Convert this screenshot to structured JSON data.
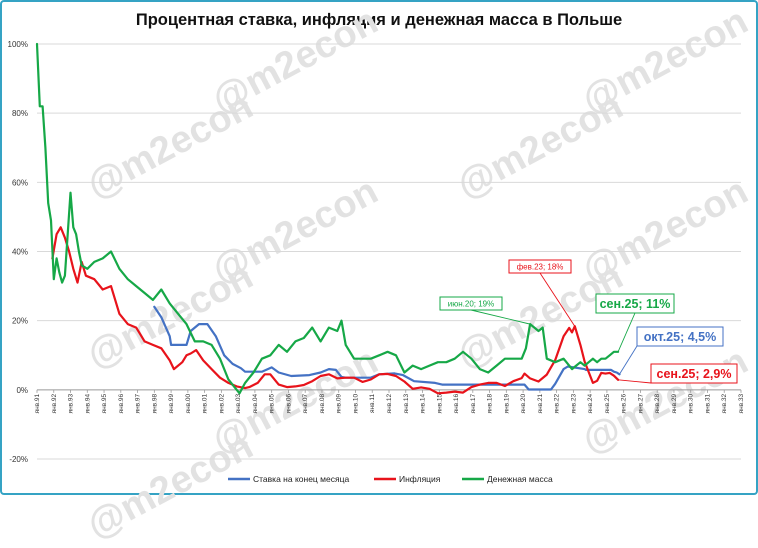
{
  "title": "Процентная ставка, инфляция и денежная масса в Польше",
  "watermark": "@m2econ",
  "colors": {
    "rate": "#4472c4",
    "inflation": "#e8131b",
    "money": "#16a847",
    "frame": "#35a3c4"
  },
  "chart_data": {
    "type": "line",
    "ylim": [
      -20,
      100
    ],
    "yticks": [
      "-20%",
      "0%",
      "20%",
      "40%",
      "60%",
      "80%",
      "100%"
    ],
    "x_range": [
      "1991-01",
      "2033-01"
    ],
    "xtick_labels": [
      "янв.91",
      "янв.92",
      "янв.93",
      "янв.94",
      "янв.95",
      "янв.96",
      "янв.97",
      "янв.98",
      "янв.99",
      "янв.00",
      "янв.01",
      "янв.02",
      "янв.03",
      "янв.04",
      "янв.05",
      "янв.06",
      "янв.07",
      "янв.08",
      "янв.09",
      "янв.10",
      "янв.11",
      "янв.12",
      "янв.13",
      "янв.14",
      "янв.15",
      "янв.16",
      "янв.17",
      "янв.18",
      "янв.19",
      "янв.20",
      "янв.21",
      "янв.22",
      "янв.23",
      "янв.24",
      "янв.25",
      "янв.26",
      "янв.27",
      "янв.28",
      "янв.29",
      "янв.30",
      "янв.31",
      "янв.32",
      "янв.33"
    ],
    "grid": true,
    "legend_position": "bottom",
    "series": [
      {
        "name": "Ставка на конец месяца",
        "color": "#4472c4",
        "points": [
          [
            "1998-01",
            24
          ],
          [
            "1998-06",
            21
          ],
          [
            "1998-12",
            15.5
          ],
          [
            "1999-01",
            13
          ],
          [
            "1999-12",
            13
          ],
          [
            "2000-03",
            17
          ],
          [
            "2000-09",
            19
          ],
          [
            "2001-03",
            19
          ],
          [
            "2001-09",
            15.5
          ],
          [
            "2002-03",
            10
          ],
          [
            "2002-09",
            7.5
          ],
          [
            "2003-03",
            6.25
          ],
          [
            "2003-06",
            5.25
          ],
          [
            "2004-06",
            5.25
          ],
          [
            "2005-01",
            6.5
          ],
          [
            "2005-06",
            5
          ],
          [
            "2006-03",
            4
          ],
          [
            "2007-04",
            4.25
          ],
          [
            "2007-12",
            5
          ],
          [
            "2008-06",
            6
          ],
          [
            "2008-11",
            5.75
          ],
          [
            "2009-03",
            3.75
          ],
          [
            "2009-06",
            3.5
          ],
          [
            "2010-12",
            3.5
          ],
          [
            "2011-06",
            4.5
          ],
          [
            "2012-05",
            4.75
          ],
          [
            "2012-11",
            4.25
          ],
          [
            "2013-07",
            2.5
          ],
          [
            "2014-10",
            2
          ],
          [
            "2015-03",
            1.5
          ],
          [
            "2020-02",
            1.5
          ],
          [
            "2020-05",
            0.1
          ],
          [
            "2021-09",
            0.1
          ],
          [
            "2021-12",
            1.75
          ],
          [
            "2022-06",
            6
          ],
          [
            "2022-09",
            6.75
          ],
          [
            "2023-09",
            6
          ],
          [
            "2023-10",
            5.75
          ],
          [
            "2025-04",
            5.75
          ],
          [
            "2025-06",
            5.25
          ],
          [
            "2025-08",
            5
          ],
          [
            "2025-10",
            4.5
          ]
        ]
      },
      {
        "name": "Инфляция",
        "color": "#e8131b",
        "points": [
          [
            "1991-12",
            38
          ],
          [
            "1992-03",
            45
          ],
          [
            "1992-06",
            47
          ],
          [
            "1992-09",
            44
          ],
          [
            "1992-12",
            40
          ],
          [
            "1993-03",
            35
          ],
          [
            "1993-06",
            31
          ],
          [
            "1993-09",
            37
          ],
          [
            "1993-12",
            33
          ],
          [
            "1994-06",
            32
          ],
          [
            "1994-12",
            29
          ],
          [
            "1995-06",
            30
          ],
          [
            "1995-12",
            22
          ],
          [
            "1996-06",
            19
          ],
          [
            "1996-12",
            18
          ],
          [
            "1997-06",
            14
          ],
          [
            "1997-12",
            13
          ],
          [
            "1998-06",
            12
          ],
          [
            "1998-12",
            8.5
          ],
          [
            "1999-03",
            6
          ],
          [
            "1999-09",
            8
          ],
          [
            "1999-12",
            10
          ],
          [
            "2000-03",
            10.5
          ],
          [
            "2000-07",
            11.5
          ],
          [
            "2000-12",
            8.5
          ],
          [
            "2001-06",
            6
          ],
          [
            "2001-12",
            3.5
          ],
          [
            "2002-06",
            2
          ],
          [
            "2002-12",
            1
          ],
          [
            "2003-06",
            0.5
          ],
          [
            "2003-09",
            0.8
          ],
          [
            "2004-03",
            2
          ],
          [
            "2004-08",
            4.5
          ],
          [
            "2004-12",
            4.5
          ],
          [
            "2005-06",
            1.5
          ],
          [
            "2005-12",
            0.8
          ],
          [
            "2006-06",
            1
          ],
          [
            "2006-12",
            1.4
          ],
          [
            "2007-06",
            2.5
          ],
          [
            "2007-12",
            4
          ],
          [
            "2008-06",
            4.5
          ],
          [
            "2008-12",
            3.3
          ],
          [
            "2009-06",
            3.5
          ],
          [
            "2009-12",
            3.5
          ],
          [
            "2010-06",
            2.3
          ],
          [
            "2010-12",
            3
          ],
          [
            "2011-06",
            4.5
          ],
          [
            "2011-12",
            4.6
          ],
          [
            "2012-06",
            4
          ],
          [
            "2012-12",
            2.4
          ],
          [
            "2013-06",
            0.3
          ],
          [
            "2013-12",
            0.7
          ],
          [
            "2014-06",
            0.3
          ],
          [
            "2014-12",
            -1
          ],
          [
            "2015-06",
            -0.8
          ],
          [
            "2015-12",
            -0.5
          ],
          [
            "2016-06",
            -0.8
          ],
          [
            "2016-12",
            0.8
          ],
          [
            "2017-06",
            1.5
          ],
          [
            "2017-12",
            2
          ],
          [
            "2018-06",
            2
          ],
          [
            "2018-12",
            1.1
          ],
          [
            "2019-06",
            2.5
          ],
          [
            "2019-12",
            3.4
          ],
          [
            "2020-02",
            4.7
          ],
          [
            "2020-06",
            3.3
          ],
          [
            "2020-12",
            2.4
          ],
          [
            "2021-06",
            4.4
          ],
          [
            "2021-12",
            8.6
          ],
          [
            "2022-06",
            15.5
          ],
          [
            "2022-10",
            17.9
          ],
          [
            "2022-12",
            16.6
          ],
          [
            "2023-02",
            18.4
          ],
          [
            "2023-06",
            13
          ],
          [
            "2023-09",
            8.2
          ],
          [
            "2024-03",
            2
          ],
          [
            "2024-06",
            2.6
          ],
          [
            "2024-09",
            4.9
          ],
          [
            "2024-12",
            4.7
          ],
          [
            "2025-03",
            4.9
          ],
          [
            "2025-06",
            4.1
          ],
          [
            "2025-09",
            2.9
          ]
        ]
      },
      {
        "name": "Денежная масса",
        "color": "#16a847",
        "points": [
          [
            "1991-01",
            100
          ],
          [
            "1991-03",
            82
          ],
          [
            "1991-05",
            82
          ],
          [
            "1991-07",
            70
          ],
          [
            "1991-09",
            54
          ],
          [
            "1991-11",
            49
          ],
          [
            "1992-01",
            32
          ],
          [
            "1992-03",
            38
          ],
          [
            "1992-05",
            34
          ],
          [
            "1992-07",
            31
          ],
          [
            "1992-09",
            33
          ],
          [
            "1992-11",
            45
          ],
          [
            "1993-01",
            57
          ],
          [
            "1993-03",
            47
          ],
          [
            "1993-05",
            45
          ],
          [
            "1993-07",
            40
          ],
          [
            "1993-09",
            36
          ],
          [
            "1994-01",
            35
          ],
          [
            "1994-06",
            37
          ],
          [
            "1994-12",
            38
          ],
          [
            "1995-06",
            40
          ],
          [
            "1995-12",
            35
          ],
          [
            "1996-06",
            32
          ],
          [
            "1996-12",
            30
          ],
          [
            "1997-06",
            28
          ],
          [
            "1997-12",
            26
          ],
          [
            "1998-06",
            29
          ],
          [
            "1998-12",
            25
          ],
          [
            "1999-06",
            22
          ],
          [
            "1999-12",
            19
          ],
          [
            "2000-06",
            14
          ],
          [
            "2000-12",
            14
          ],
          [
            "2001-06",
            13
          ],
          [
            "2001-12",
            9
          ],
          [
            "2002-06",
            3
          ],
          [
            "2002-12",
            0
          ],
          [
            "2003-02",
            -1
          ],
          [
            "2003-06",
            2
          ],
          [
            "2003-12",
            5
          ],
          [
            "2004-06",
            9
          ],
          [
            "2004-12",
            10
          ],
          [
            "2005-06",
            13
          ],
          [
            "2005-12",
            11
          ],
          [
            "2006-06",
            14
          ],
          [
            "2006-12",
            15
          ],
          [
            "2007-06",
            18
          ],
          [
            "2007-12",
            14
          ],
          [
            "2008-06",
            18
          ],
          [
            "2008-12",
            17
          ],
          [
            "2009-03",
            20
          ],
          [
            "2009-06",
            13
          ],
          [
            "2009-12",
            9
          ],
          [
            "2010-06",
            9
          ],
          [
            "2010-12",
            9
          ],
          [
            "2011-06",
            10
          ],
          [
            "2011-12",
            11
          ],
          [
            "2012-06",
            10
          ],
          [
            "2012-12",
            5
          ],
          [
            "2013-06",
            7
          ],
          [
            "2013-12",
            6
          ],
          [
            "2014-06",
            7
          ],
          [
            "2014-12",
            8
          ],
          [
            "2015-06",
            8
          ],
          [
            "2015-12",
            9
          ],
          [
            "2016-06",
            11
          ],
          [
            "2016-12",
            9
          ],
          [
            "2017-06",
            6
          ],
          [
            "2017-12",
            5
          ],
          [
            "2018-06",
            7
          ],
          [
            "2018-12",
            9
          ],
          [
            "2019-06",
            9
          ],
          [
            "2019-12",
            9
          ],
          [
            "2020-03",
            12
          ],
          [
            "2020-06",
            19
          ],
          [
            "2020-12",
            17
          ],
          [
            "2021-03",
            18
          ],
          [
            "2021-06",
            9
          ],
          [
            "2021-12",
            8
          ],
          [
            "2022-06",
            9
          ],
          [
            "2022-12",
            6
          ],
          [
            "2023-03",
            7
          ],
          [
            "2023-06",
            8
          ],
          [
            "2023-09",
            7
          ],
          [
            "2023-12",
            8
          ],
          [
            "2024-03",
            9
          ],
          [
            "2024-06",
            8
          ],
          [
            "2024-09",
            9
          ],
          [
            "2024-12",
            9
          ],
          [
            "2025-03",
            10
          ],
          [
            "2025-06",
            11
          ],
          [
            "2025-09",
            11
          ]
        ]
      }
    ],
    "annotations": [
      {
        "text": "фев.23; 18%",
        "color": "#e8131b",
        "size": "small",
        "x": "2023-02",
        "y": 18.4
      },
      {
        "text": "июн.20; 19%",
        "color": "#16a847",
        "size": "small",
        "x": "2020-06",
        "y": 19
      },
      {
        "text": "сен.25; 11%",
        "color": "#16a847",
        "size": "big",
        "x": "2025-09",
        "y": 11
      },
      {
        "text": "окт.25; 4,5%",
        "color": "#4472c4",
        "size": "big",
        "x": "2025-10",
        "y": 4.5
      },
      {
        "text": "сен.25; 2,9%",
        "color": "#e8131b",
        "size": "big",
        "x": "2025-09",
        "y": 2.9
      }
    ]
  }
}
